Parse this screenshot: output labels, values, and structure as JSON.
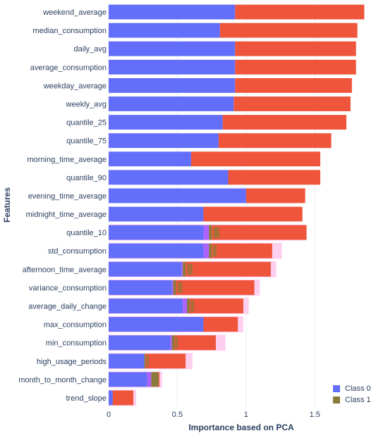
{
  "chart_data": {
    "type": "bar",
    "orientation": "horizontal",
    "barmode": "stack",
    "xlabel": "Importance based on PCA",
    "ylabel": "Features",
    "xlim": [
      0,
      1.93
    ],
    "xticks": [
      {
        "value": 0,
        "label": "0"
      },
      {
        "value": 0.5,
        "label": "0.5"
      },
      {
        "value": 1,
        "label": "1"
      },
      {
        "value": 1.5,
        "label": "1.5"
      }
    ],
    "grid": true,
    "legend_position": "bottom-right",
    "categories": [
      "weekend_average",
      "median_consumption",
      "daily_avg",
      "average_consumption",
      "weekday_average",
      "weekly_avg",
      "quantile_25",
      "quantile_75",
      "morning_time_average",
      "quantile_90",
      "evening_time_average",
      "midnight_time_average",
      "quantile_10",
      "std_consumption",
      "afternoon_time_average",
      "variance_consumption",
      "average_daily_change",
      "max_consumption",
      "min_consumption",
      "high_usage_periods",
      "month_to_month_change",
      "trend_slope"
    ],
    "series": [
      {
        "name": "Class 0",
        "color": "#636efa",
        "values": [
          0.92,
          0.81,
          0.92,
          0.92,
          0.92,
          0.91,
          0.83,
          0.8,
          0.6,
          0.87,
          1.0,
          0.69,
          0.69,
          0.69,
          0.53,
          0.46,
          0.54,
          0.69,
          0.45,
          0.26,
          0.28,
          0.03
        ]
      },
      {
        "name": "Class 1",
        "color": "#8a7a3c",
        "values": [
          0,
          0,
          0,
          0,
          0,
          0,
          0,
          0,
          0,
          0,
          0,
          0,
          0.02,
          0.02,
          0.02,
          0.02,
          0.02,
          0,
          0.02,
          0.01,
          0.05,
          0
        ]
      }
    ],
    "overlay_series": [
      {
        "color": "#ef553b",
        "values": [
          0.94,
          1.0,
          0.88,
          0.88,
          0.85,
          0.85,
          0.9,
          0.82,
          0.94,
          0.67,
          0.43,
          0.72,
          0.69,
          0.44,
          0.62,
          0.57,
          0.39,
          0.25,
          0.3,
          0.29,
          0.01,
          0.15
        ]
      }
    ],
    "extra_segments": [
      {
        "row": 12,
        "color": "#ab63fa",
        "value": 0.04
      },
      {
        "row": 13,
        "color": "#ab63fa",
        "value": 0.04
      },
      {
        "row": 14,
        "color": "#ab63fa",
        "value": 0.01
      },
      {
        "row": 15,
        "color": "#ab63fa",
        "value": 0.01
      },
      {
        "row": 16,
        "color": "#ab63fa",
        "value": 0.03
      },
      {
        "row": 18,
        "color": "#ab63fa",
        "value": 0.01
      },
      {
        "row": 20,
        "color": "#ab63fa",
        "value": 0.03
      }
    ],
    "background_strips": [
      {
        "row": 12,
        "color": "#ffcff0",
        "value": 1.43
      },
      {
        "row": 13,
        "color": "#ffcff0",
        "value": 1.26
      },
      {
        "row": 14,
        "color": "#ffcff0",
        "value": 1.22
      },
      {
        "row": 15,
        "color": "#ffcff0",
        "value": 1.1
      },
      {
        "row": 16,
        "color": "#ffcff0",
        "value": 1.02
      },
      {
        "row": 17,
        "color": "#ffcff0",
        "value": 0.98
      },
      {
        "row": 18,
        "color": "#ffcff0",
        "value": 0.85
      },
      {
        "row": 19,
        "color": "#ffcff0",
        "value": 0.61
      },
      {
        "row": 20,
        "color": "#ffcff0",
        "value": 0.39
      },
      {
        "row": 21,
        "color": "#ffcff0",
        "value": 0.2
      }
    ]
  }
}
